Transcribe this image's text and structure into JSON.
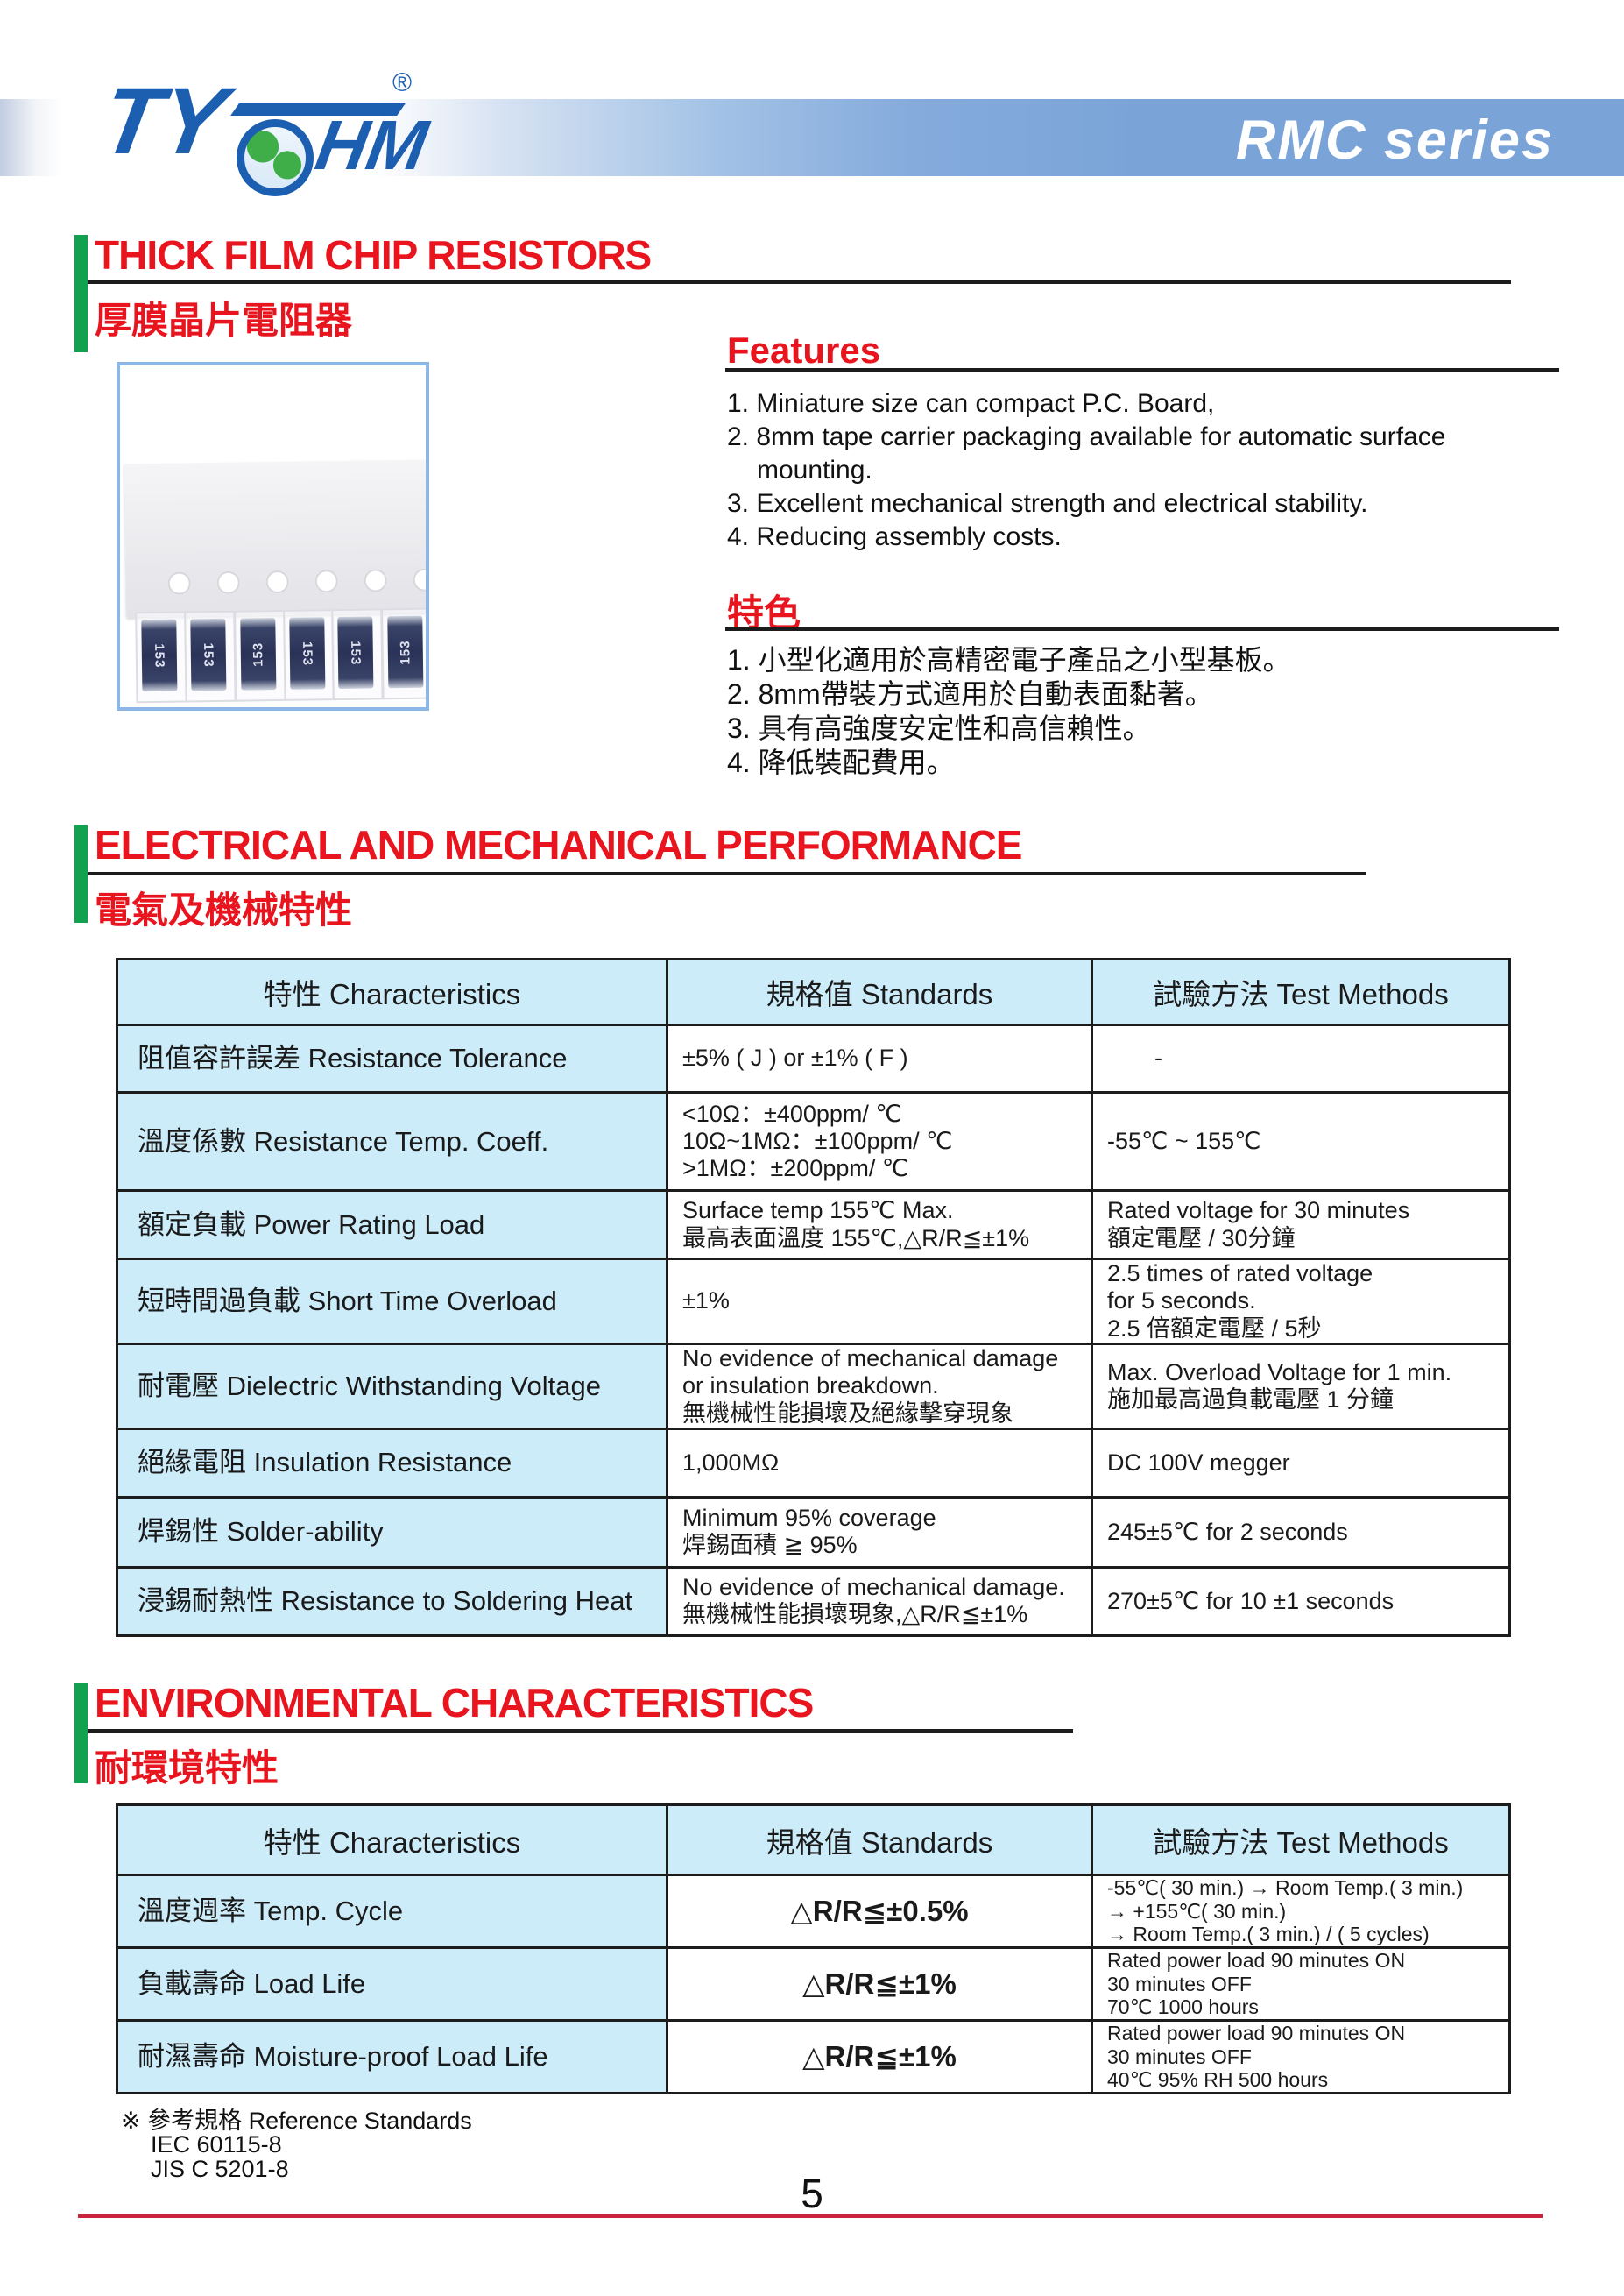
{
  "header": {
    "brand_ty": "TY",
    "brand_hm": "HM",
    "registered_mark": "®",
    "series_title": "RMC series"
  },
  "section_product": {
    "title_en": "THICK FILM CHIP RESISTORS",
    "title_zh": "厚膜晶片電阻器"
  },
  "photo": {
    "chip_marking": "153"
  },
  "features": {
    "title": "Features",
    "items": [
      [
        "1. Miniature size can compact P.C. Board,"
      ],
      [
        "2. 8mm tape carrier packaging available for automatic surface",
        "mounting."
      ],
      [
        "3. Excellent mechanical strength and electrical stability."
      ],
      [
        "4. Reducing assembly costs."
      ]
    ]
  },
  "features_zh": {
    "title": "特色",
    "items": [
      [
        "1. 小型化適用於高精密電子產品之小型基板。"
      ],
      [
        "2. 8mm帶裝方式適用於自動表面黏著。"
      ],
      [
        "3. 具有高強度安定性和高信賴性。"
      ],
      [
        "4. 降低裝配費用。"
      ]
    ]
  },
  "section_electrical": {
    "title_en": "ELECTRICAL AND MECHANICAL PERFORMANCE",
    "title_zh": "電氣及機械特性"
  },
  "section_environmental": {
    "title_en": "ENVIRONMENTAL CHARACTERISTICS",
    "title_zh": "耐環境特性"
  },
  "electrical_table": {
    "headers": [
      "特性 Characteristics",
      "規格值 Standards",
      "試驗方法 Test Methods"
    ],
    "rows": [
      {
        "characteristic": "阻值容許誤差 Resistance Tolerance",
        "standards": [
          "±5% ( J ) or ±1% ( F )"
        ],
        "test_methods": [
          "-"
        ]
      },
      {
        "characteristic": "溫度係數 Resistance Temp. Coeff.",
        "standards": [
          "<10Ω：±400ppm/ ℃",
          "10Ω~1MΩ：±100ppm/ ℃",
          ">1MΩ：±200ppm/ ℃"
        ],
        "test_methods": [
          "-55℃ ~ 155℃"
        ]
      },
      {
        "characteristic": "額定負載 Power Rating Load",
        "standards": [
          "Surface temp 155℃ Max.",
          "最高表面溫度 155℃,△R/R≦±1%"
        ],
        "test_methods": [
          "Rated voltage for 30 minutes",
          "額定電壓 / 30分鐘"
        ]
      },
      {
        "characteristic": "短時間過負載 Short Time Overload",
        "standards": [
          "±1%"
        ],
        "test_methods": [
          "2.5 times of rated voltage",
          "for 5 seconds.",
          "2.5 倍額定電壓 / 5秒"
        ]
      },
      {
        "characteristic": "耐電壓 Dielectric Withstanding Voltage",
        "standards": [
          "No evidence of mechanical damage",
          "or insulation breakdown.",
          "無機械性能損壞及絕緣擊穿現象"
        ],
        "test_methods": [
          "Max. Overload Voltage for 1 min.",
          "施加最高過負載電壓 1 分鐘"
        ]
      },
      {
        "characteristic": "絕緣電阻 Insulation Resistance",
        "standards": [
          "1,000MΩ"
        ],
        "test_methods": [
          "DC 100V megger"
        ]
      },
      {
        "characteristic": "焊錫性 Solder-ability",
        "standards": [
          "Minimum 95% coverage",
          "焊錫面積 ≧ 95%"
        ],
        "test_methods": [
          "245±5℃ for 2 seconds"
        ]
      },
      {
        "characteristic": "浸錫耐熱性 Resistance to Soldering Heat",
        "standards": [
          "No evidence of mechanical damage.",
          "無機械性能損壞現象,△R/R≦±1%"
        ],
        "test_methods": [
          "270±5℃ for 10 ±1 seconds"
        ]
      }
    ]
  },
  "environmental_table": {
    "headers": [
      "特性 Characteristics",
      "規格值 Standards",
      "試驗方法 Test Methods"
    ],
    "rows": [
      {
        "characteristic": "溫度週率 Temp. Cycle",
        "standards": [
          "△R/R≦±0.5%"
        ],
        "test_methods": [
          "-55℃( 30 min.) → Room Temp.( 3 min.)",
          "→ +155℃( 30 min.)",
          "→ Room Temp.( 3 min.) / ( 5 cycles)"
        ]
      },
      {
        "characteristic": "負載壽命 Load Life",
        "standards": [
          "△R/R≦±1%"
        ],
        "test_methods": [
          "Rated power load 90 minutes ON",
          "30 minutes OFF",
          "70℃ 1000 hours"
        ]
      },
      {
        "characteristic": "耐濕壽命 Moisture-proof Load Life",
        "standards": [
          "△R/R≦±1%"
        ],
        "test_methods": [
          "Rated power load 90 minutes ON",
          "30 minutes OFF",
          "40℃ 95% RH 500 hours"
        ]
      }
    ]
  },
  "footer": {
    "reference_note": "※ 參考規格 Reference Standards",
    "references": [
      "IEC 60115-8",
      "JIS C 5201-8"
    ],
    "page_number": "5"
  },
  "colors": {
    "accent_red": "#e8141e",
    "accent_green": "#12a14e",
    "band_blue": "#7aa4d8",
    "table_header_blue": "#cdecf9",
    "logo_blue": "#1c5fb0",
    "footer_line_red": "#c9243a"
  }
}
